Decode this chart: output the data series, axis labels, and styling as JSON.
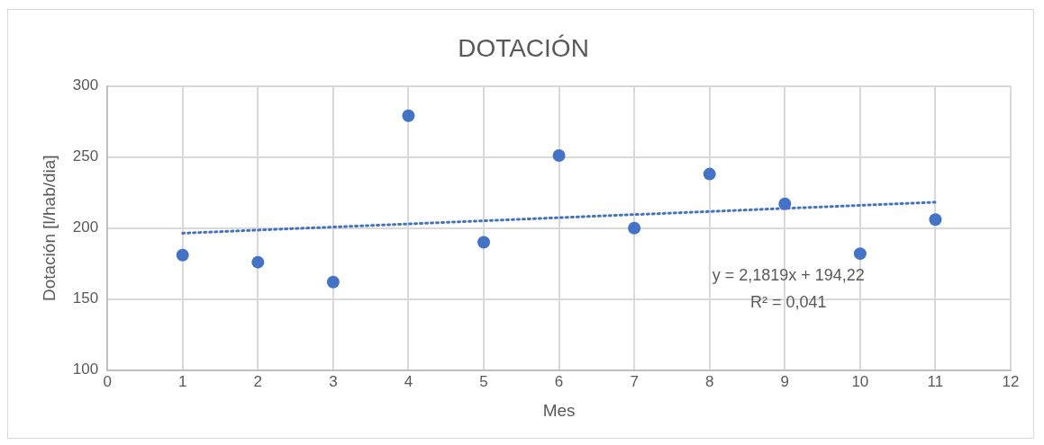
{
  "chart_data": {
    "type": "scatter",
    "title": "DOTACIÓN",
    "xlabel": "Mes",
    "ylabel": "Dotación [l/hab/dia]",
    "xlim": [
      0,
      12
    ],
    "xticks": [
      0,
      1,
      2,
      3,
      4,
      5,
      6,
      7,
      8,
      9,
      10,
      11,
      12
    ],
    "ylim": [
      100,
      300
    ],
    "yticks": [
      100,
      150,
      200,
      250,
      300
    ],
    "grid": true,
    "legend": false,
    "annotations": [
      "y = 2,1819x + 194,22",
      "R² = 0,041"
    ],
    "series": [
      {
        "type": "scatter",
        "color": "#4472c4",
        "marker": "circle",
        "x": [
          1,
          2,
          3,
          4,
          5,
          6,
          7,
          8,
          9,
          10,
          11
        ],
        "values": [
          181,
          176,
          162,
          279,
          190,
          251,
          200,
          238,
          217,
          182,
          206
        ]
      },
      {
        "type": "line",
        "color": "#4472c4",
        "marker": "none",
        "line_style": "dotted",
        "x": [
          1,
          11
        ],
        "values": [
          196.4,
          218.2
        ]
      }
    ]
  }
}
